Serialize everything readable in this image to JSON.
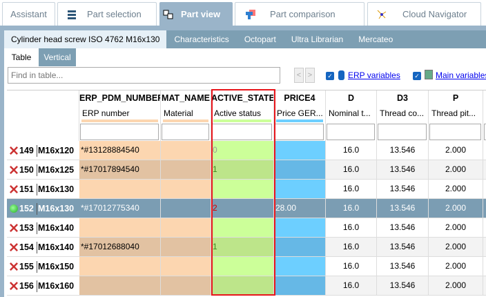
{
  "top_tabs": [
    {
      "label": "Assistant",
      "icon": ""
    },
    {
      "label": "Part selection",
      "icon": "stack-icon"
    },
    {
      "label": "Part view",
      "icon": "cubes-icon",
      "active": true
    },
    {
      "label": "Part comparison",
      "icon": "compare-icon"
    },
    {
      "label": "Cloud Navigator",
      "icon": "network-icon"
    }
  ],
  "sub_tabs": [
    {
      "label": "Cylinder head screw ISO 4762 M16x130",
      "active": true
    },
    {
      "label": "Characteristics"
    },
    {
      "label": "Octopart"
    },
    {
      "label": "Ultra Librarian"
    },
    {
      "label": "Mercateo"
    }
  ],
  "view_tabs": [
    {
      "label": "Table",
      "active": true
    },
    {
      "label": "Vertical"
    }
  ],
  "toolbar": {
    "search_placeholder": "Find in table...",
    "prev": "<",
    "next": ">",
    "erp_variables": "ERP variables",
    "main_variables": "Main variables",
    "erp_checked": true,
    "main_checked": true
  },
  "columns": [
    {
      "name": "ERP_PDM_NUMBER",
      "desc": "ERP number",
      "color": "#fcd6b0"
    },
    {
      "name": "MAT_NAME",
      "desc": "Material",
      "color": "#fcd6b0"
    },
    {
      "name": "ACTIVE_STATE",
      "desc": "Active status",
      "color": "#ccff99",
      "highlighted": true
    },
    {
      "name": "PRICE4",
      "desc": "Price GER...",
      "color": "#6dcfff"
    },
    {
      "name": "D",
      "desc": "Nominal t..."
    },
    {
      "name": "D3",
      "desc": "Thread co..."
    },
    {
      "name": "P",
      "desc": "Thread pit..."
    }
  ],
  "rows": [
    {
      "num": "149",
      "size": "M16x120",
      "status": "inactive",
      "cells": [
        "*#13128884540",
        "",
        "0",
        "",
        "16.0",
        "13.546",
        "2.000"
      ]
    },
    {
      "num": "150",
      "size": "M16x125",
      "status": "inactive",
      "cells": [
        "*#17017894540",
        "",
        "1",
        "",
        "16.0",
        "13.546",
        "2.000"
      ]
    },
    {
      "num": "151",
      "size": "M16x130",
      "status": "inactive",
      "cells": [
        "",
        "",
        "",
        "",
        "16.0",
        "13.546",
        "2.000"
      ]
    },
    {
      "num": "152",
      "size": "M16x130",
      "status": "active",
      "selected": true,
      "cells": [
        "*#17012775340",
        "",
        "2",
        "28.00",
        "16.0",
        "13.546",
        "2.000"
      ]
    },
    {
      "num": "153",
      "size": "M16x140",
      "status": "inactive",
      "cells": [
        "",
        "",
        "",
        "",
        "16.0",
        "13.546",
        "2.000"
      ]
    },
    {
      "num": "154",
      "size": "M16x140",
      "status": "inactive",
      "cells": [
        "*#17012688040",
        "",
        "1",
        "",
        "16.0",
        "13.546",
        "2.000"
      ]
    },
    {
      "num": "155",
      "size": "M16x150",
      "status": "inactive",
      "cells": [
        "",
        "",
        "",
        "",
        "16.0",
        "13.546",
        "2.000"
      ]
    },
    {
      "num": "156",
      "size": "M16x160",
      "status": "inactive",
      "cells": [
        "",
        "",
        "",
        "",
        "16.0",
        "13.546",
        "2.000"
      ]
    }
  ],
  "colors": {
    "highlight_border": "#e8141a",
    "selected_row": "#7b9db3",
    "tab_active": "#9ab4c9",
    "subtab_bg": "#7d9fb3"
  }
}
